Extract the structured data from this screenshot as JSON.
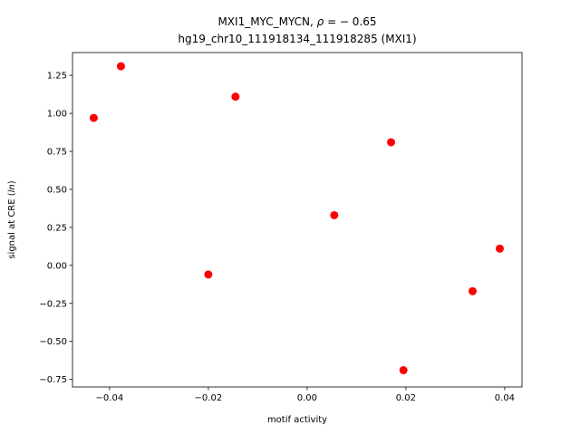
{
  "chart_data": {
    "type": "scatter",
    "title_line1_prefix": "MXI1_MYC_MYCN, ",
    "title_rho_symbol": "ρ",
    "title_rho_value": " = − 0.65",
    "title_line2": "hg19_chr10_111918134_111918285 (MXI1)",
    "xlabel": "motif activity",
    "ylabel_prefix": "signal at CRE (",
    "ylabel_italic": "ln",
    "ylabel_suffix": ")",
    "xlim": [
      -0.0475,
      0.0435
    ],
    "ylim": [
      -0.8,
      1.4
    ],
    "xticks": [
      -0.04,
      -0.02,
      0.0,
      0.02,
      0.04
    ],
    "xtick_labels": [
      "−0.04",
      "−0.02",
      "0.00",
      "0.02",
      "0.04"
    ],
    "yticks": [
      -0.75,
      -0.5,
      -0.25,
      0.0,
      0.25,
      0.5,
      0.75,
      1.0,
      1.25
    ],
    "ytick_labels": [
      "−0.75",
      "−0.50",
      "−0.25",
      "0.00",
      "0.25",
      "0.50",
      "0.75",
      "1.00",
      "1.25"
    ],
    "grid": false,
    "marker_color": "#ff0000",
    "points": [
      {
        "x": -0.0432,
        "y": 0.97
      },
      {
        "x": -0.0377,
        "y": 1.31
      },
      {
        "x": -0.0145,
        "y": 1.11
      },
      {
        "x": -0.02,
        "y": -0.06
      },
      {
        "x": 0.0055,
        "y": 0.33
      },
      {
        "x": 0.017,
        "y": 0.81
      },
      {
        "x": 0.0195,
        "y": -0.69
      },
      {
        "x": 0.0335,
        "y": -0.17
      },
      {
        "x": 0.039,
        "y": 0.11
      }
    ]
  }
}
